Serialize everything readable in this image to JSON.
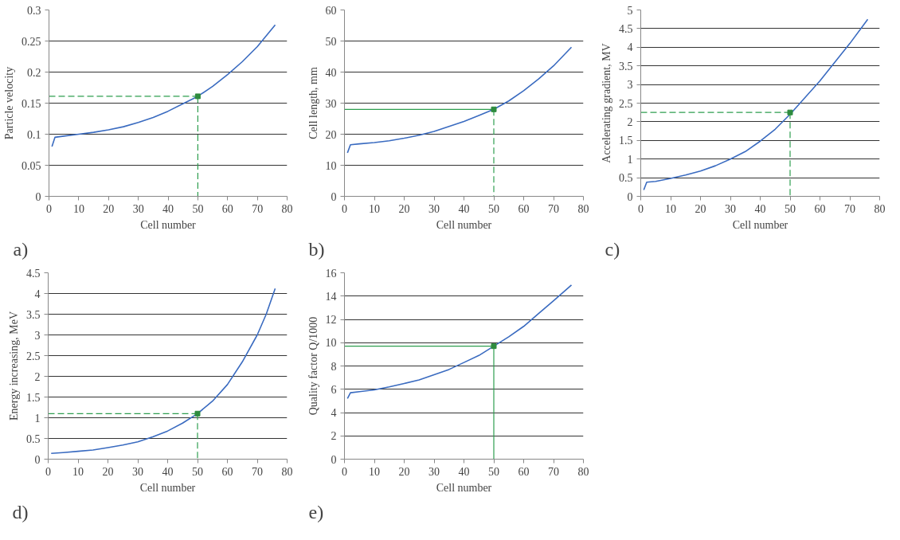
{
  "chart_data": [
    {
      "type": "line",
      "xlabel": "Cell number",
      "ylabel": "Particle velocity",
      "annotations": [
        "a)"
      ],
      "xlim": [
        0,
        80
      ],
      "xticks": [
        0,
        10,
        20,
        30,
        40,
        50,
        60,
        70,
        80
      ],
      "ylim": [
        0,
        0.3
      ],
      "yticks": [
        0,
        0.05,
        0.1,
        0.15,
        0.2,
        0.25,
        0.3
      ],
      "grid": "y",
      "series": [
        {
          "color": "#3a6bc0",
          "line_style": "solid",
          "x": [
            1,
            2,
            5,
            10,
            15,
            20,
            25,
            30,
            35,
            40,
            45,
            50,
            55,
            60,
            65,
            70,
            76
          ],
          "values": [
            0.08,
            0.095,
            0.097,
            0.1,
            0.103,
            0.107,
            0.112,
            0.119,
            0.127,
            0.137,
            0.149,
            0.161,
            0.177,
            0.196,
            0.217,
            0.241,
            0.276
          ]
        },
        {
          "color": "#2e9e4f",
          "line_style": "dashed",
          "x": [
            0,
            50
          ],
          "values": [
            0.161,
            0.161
          ]
        },
        {
          "color": "#2e9e4f",
          "line_style": "dashed",
          "x": [
            50,
            50
          ],
          "values": [
            0.161,
            0
          ]
        },
        {
          "type": "scatter",
          "color": "#2e8b3e",
          "marker": "square",
          "x": [
            50
          ],
          "values": [
            0.161
          ]
        }
      ]
    },
    {
      "type": "line",
      "xlabel": "Cell number",
      "ylabel": "Cell length, mm",
      "annotations": [
        "b)"
      ],
      "xlim": [
        0,
        80
      ],
      "xticks": [
        0,
        10,
        20,
        30,
        40,
        50,
        60,
        70,
        80
      ],
      "ylim": [
        0,
        60
      ],
      "yticks": [
        0,
        10,
        20,
        30,
        40,
        50,
        60
      ],
      "grid": "y",
      "series": [
        {
          "color": "#3a6bc0",
          "line_style": "solid",
          "x": [
            1,
            2,
            5,
            10,
            15,
            20,
            25,
            30,
            35,
            40,
            45,
            50,
            55,
            60,
            65,
            70,
            76
          ],
          "values": [
            14,
            16.6,
            16.9,
            17.3,
            17.9,
            18.7,
            19.7,
            20.9,
            22.5,
            24.1,
            26,
            28,
            30.7,
            34,
            37.8,
            42,
            48
          ]
        },
        {
          "color": "#2e9e4f",
          "line_style": "solid",
          "x": [
            0,
            50
          ],
          "values": [
            28,
            28
          ]
        },
        {
          "color": "#2e9e4f",
          "line_style": "dashed",
          "x": [
            50,
            50
          ],
          "values": [
            28,
            0
          ]
        },
        {
          "type": "scatter",
          "color": "#2e8b3e",
          "marker": "square",
          "x": [
            50
          ],
          "values": [
            28
          ]
        }
      ]
    },
    {
      "type": "line",
      "xlabel": "Cell number",
      "ylabel": "Accelerating gradient, MV",
      "annotations": [
        "c)"
      ],
      "xlim": [
        0,
        80
      ],
      "xticks": [
        0,
        10,
        20,
        30,
        40,
        50,
        60,
        70,
        80
      ],
      "ylim": [
        0,
        5
      ],
      "yticks": [
        0,
        0.5,
        1,
        1.5,
        2,
        2.5,
        3,
        3.5,
        4,
        4.5,
        5
      ],
      "grid": "y",
      "series": [
        {
          "color": "#3a6bc0",
          "line_style": "solid",
          "x": [
            1,
            2,
            5,
            10,
            15,
            20,
            25,
            30,
            35,
            40,
            45,
            50,
            55,
            60,
            65,
            70,
            76
          ],
          "values": [
            0.17,
            0.38,
            0.4,
            0.48,
            0.57,
            0.68,
            0.82,
            1.0,
            1.2,
            1.48,
            1.8,
            2.2,
            2.65,
            3.1,
            3.6,
            4.1,
            4.75
          ]
        },
        {
          "color": "#2e9e4f",
          "line_style": "dashed",
          "x": [
            0,
            50
          ],
          "values": [
            2.25,
            2.25
          ]
        },
        {
          "color": "#2e9e4f",
          "line_style": "dashed",
          "x": [
            50,
            50
          ],
          "values": [
            2.25,
            0
          ]
        },
        {
          "type": "scatter",
          "color": "#2e8b3e",
          "marker": "square",
          "x": [
            50
          ],
          "values": [
            2.25
          ]
        }
      ]
    },
    {
      "type": "line",
      "xlabel": "Cell number",
      "ylabel": "Energy increasing, MeV",
      "annotations": [
        "d)"
      ],
      "xlim": [
        0,
        80
      ],
      "xticks": [
        0,
        10,
        20,
        30,
        40,
        50,
        60,
        70,
        80
      ],
      "ylim": [
        0,
        4.5
      ],
      "yticks": [
        0,
        0.5,
        1,
        1.5,
        2,
        2.5,
        3,
        3.5,
        4,
        4.5
      ],
      "grid": "y",
      "series": [
        {
          "color": "#3a6bc0",
          "line_style": "solid",
          "x": [
            1,
            5,
            10,
            15,
            20,
            25,
            30,
            35,
            40,
            45,
            50,
            55,
            60,
            65,
            70,
            73,
            76
          ],
          "values": [
            0.14,
            0.16,
            0.19,
            0.22,
            0.28,
            0.34,
            0.42,
            0.54,
            0.68,
            0.87,
            1.1,
            1.4,
            1.8,
            2.35,
            3.0,
            3.5,
            4.12
          ]
        },
        {
          "color": "#2e9e4f",
          "line_style": "dashed",
          "x": [
            0,
            50
          ],
          "values": [
            1.1,
            1.1
          ]
        },
        {
          "color": "#2e9e4f",
          "line_style": "dashed",
          "x": [
            50,
            50
          ],
          "values": [
            1.1,
            0
          ]
        },
        {
          "type": "scatter",
          "color": "#2e8b3e",
          "marker": "square",
          "x": [
            50
          ],
          "values": [
            1.1
          ]
        }
      ]
    },
    {
      "type": "line",
      "xlabel": "Cell number",
      "ylabel": "Quality factor Q/1000",
      "annotations": [
        "e)"
      ],
      "xlim": [
        0,
        80
      ],
      "xticks": [
        0,
        10,
        20,
        30,
        40,
        50,
        60,
        70,
        80
      ],
      "ylim": [
        0,
        16
      ],
      "yticks": [
        0,
        2,
        4,
        6,
        8,
        10,
        12,
        14,
        16
      ],
      "grid": "y",
      "series": [
        {
          "color": "#3a6bc0",
          "line_style": "solid",
          "x": [
            1,
            2,
            5,
            10,
            15,
            20,
            25,
            30,
            35,
            40,
            45,
            50,
            55,
            60,
            65,
            70,
            76
          ],
          "values": [
            5.2,
            5.7,
            5.8,
            5.95,
            6.2,
            6.5,
            6.8,
            7.25,
            7.7,
            8.3,
            8.9,
            9.7,
            10.5,
            11.4,
            12.5,
            13.6,
            14.95
          ]
        },
        {
          "color": "#2e9e4f",
          "line_style": "solid",
          "x": [
            0,
            50
          ],
          "values": [
            9.7,
            9.7
          ]
        },
        {
          "color": "#2e9e4f",
          "line_style": "solid",
          "x": [
            50,
            50
          ],
          "values": [
            9.7,
            0
          ]
        },
        {
          "type": "scatter",
          "color": "#2e8b3e",
          "marker": "square",
          "x": [
            50
          ],
          "values": [
            9.7
          ]
        }
      ]
    }
  ]
}
